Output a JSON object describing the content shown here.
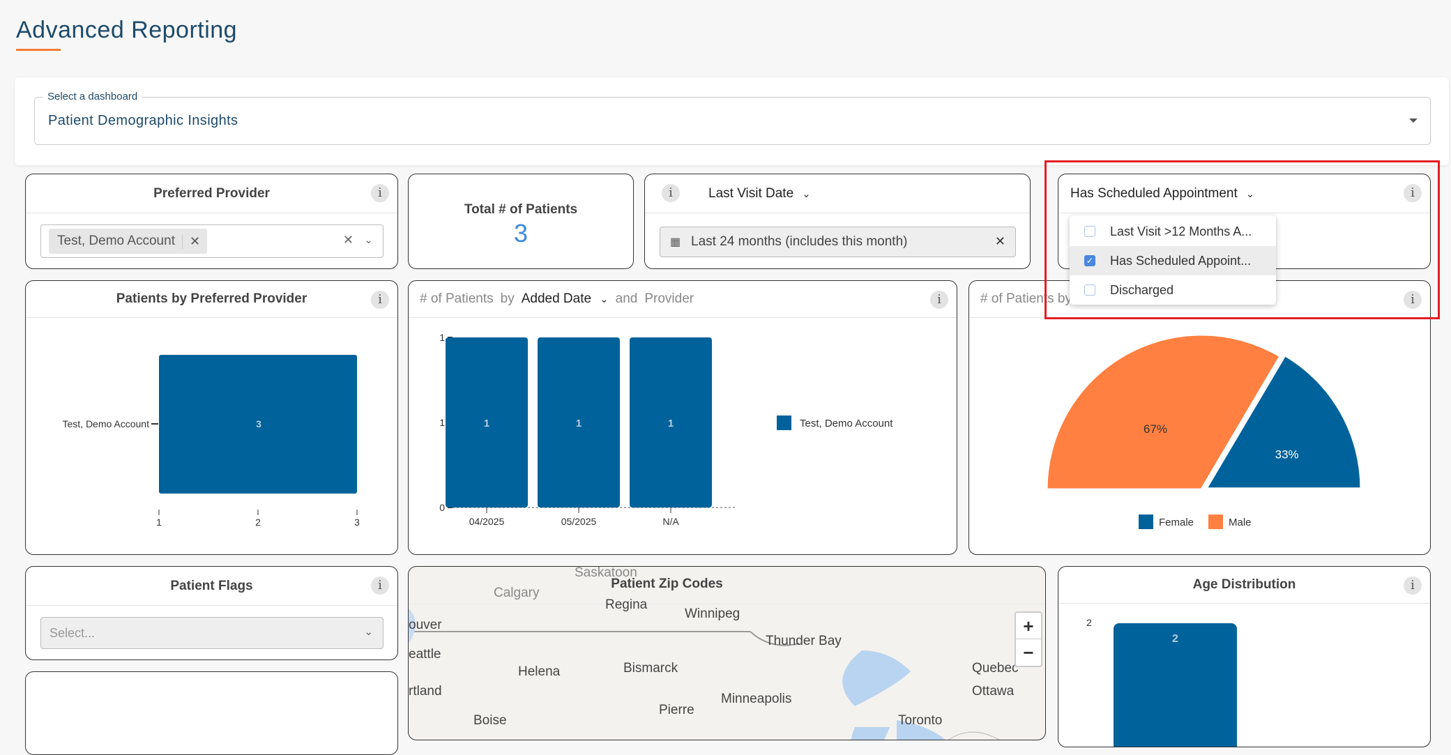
{
  "page": {
    "title": "Advanced Reporting",
    "accent": "#f47b35"
  },
  "dashboard_select": {
    "label": "Select a dashboard",
    "value": "Patient Demographic Insights"
  },
  "filters": {
    "preferred_provider": {
      "title": "Preferred Provider",
      "chip": "Test, Demo Account"
    },
    "total_patients": {
      "title": "Total # of Patients",
      "value": "3"
    },
    "last_visit": {
      "title": "Last Visit Date",
      "value": "Last 24 months (includes this month)"
    },
    "scheduled": {
      "title": "Has Scheduled Appointment",
      "menu": [
        {
          "label": "Last Visit >12 Months A...",
          "checked": false
        },
        {
          "label": "Has Scheduled Appoint...",
          "checked": true
        },
        {
          "label": "Discharged",
          "checked": false
        }
      ]
    },
    "patient_flags": {
      "title": "Patient Flags",
      "placeholder": "Select..."
    }
  },
  "chart_data": [
    {
      "type": "bar",
      "orientation": "horizontal",
      "title": "Patients by Preferred Provider",
      "categories": [
        "Test, Demo Account"
      ],
      "values": [
        3
      ],
      "xticks": [
        "1",
        "2",
        "3"
      ],
      "xlim": [
        1,
        3
      ],
      "color": "#00629b"
    },
    {
      "type": "bar",
      "title_parts": [
        "# of Patients",
        "by",
        "Added Date",
        "and",
        "Provider"
      ],
      "categories": [
        "04/2025",
        "05/2025",
        "N/A"
      ],
      "series": [
        {
          "name": "Test, Demo Account",
          "values": [
            1,
            1,
            1
          ]
        }
      ],
      "yticks": [
        "1",
        "1",
        "0"
      ],
      "ylim": [
        0,
        1
      ],
      "color": "#00629b"
    },
    {
      "type": "pie",
      "title_visible": "# of Patients by",
      "slices": [
        {
          "name": "Male",
          "value": 67,
          "label": "67%",
          "color": "#ff8040"
        },
        {
          "name": "Female",
          "value": 33,
          "label": "33%",
          "color": "#00629b"
        }
      ],
      "legend": [
        "Female",
        "Male"
      ],
      "legend_position": "bottom"
    },
    {
      "type": "bar",
      "title": "Age Distribution",
      "yticks": [
        "2"
      ],
      "values": [
        2
      ],
      "color": "#00629b"
    }
  ],
  "map": {
    "title": "Patient Zip Codes",
    "cities": [
      "Saskatoon",
      "Calgary",
      "Regina",
      "Winnipeg",
      "ouver",
      "Thunder Bay",
      "eattle",
      "Helena",
      "Bismarck",
      "Quebec",
      "rtland",
      "Minneapolis",
      "Ottawa",
      "Pierre",
      "Boise",
      "Toronto"
    ],
    "zoom_in": "+",
    "zoom_out": "−"
  }
}
